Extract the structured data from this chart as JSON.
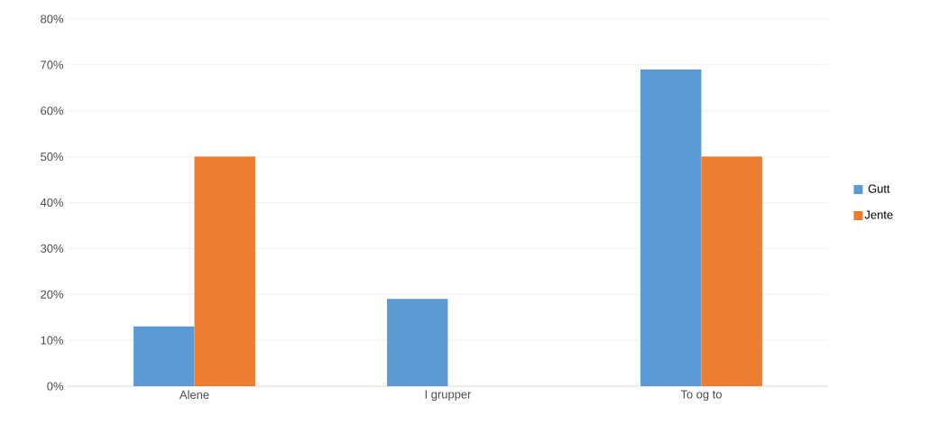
{
  "chart_data": {
    "type": "bar",
    "categories": [
      "Alene",
      "I grupper",
      "To og to"
    ],
    "series": [
      {
        "name": "Gutt",
        "color": "#5b9bd5",
        "values": [
          13,
          19,
          69
        ]
      },
      {
        "name": "Jente",
        "color": "#ed7d31",
        "values": [
          50,
          0,
          50
        ]
      }
    ],
    "ylim": [
      0,
      80
    ],
    "yticks": [
      {
        "value": 0,
        "label": "0%"
      },
      {
        "value": 10,
        "label": "10%"
      },
      {
        "value": 20,
        "label": "20%"
      },
      {
        "value": 30,
        "label": "30%"
      },
      {
        "value": 40,
        "label": "40%"
      },
      {
        "value": 50,
        "label": "50%"
      },
      {
        "value": 60,
        "label": "60%"
      },
      {
        "value": 70,
        "label": "70%"
      },
      {
        "value": 80,
        "label": "80%"
      }
    ],
    "grid": "y",
    "legend": "right"
  }
}
